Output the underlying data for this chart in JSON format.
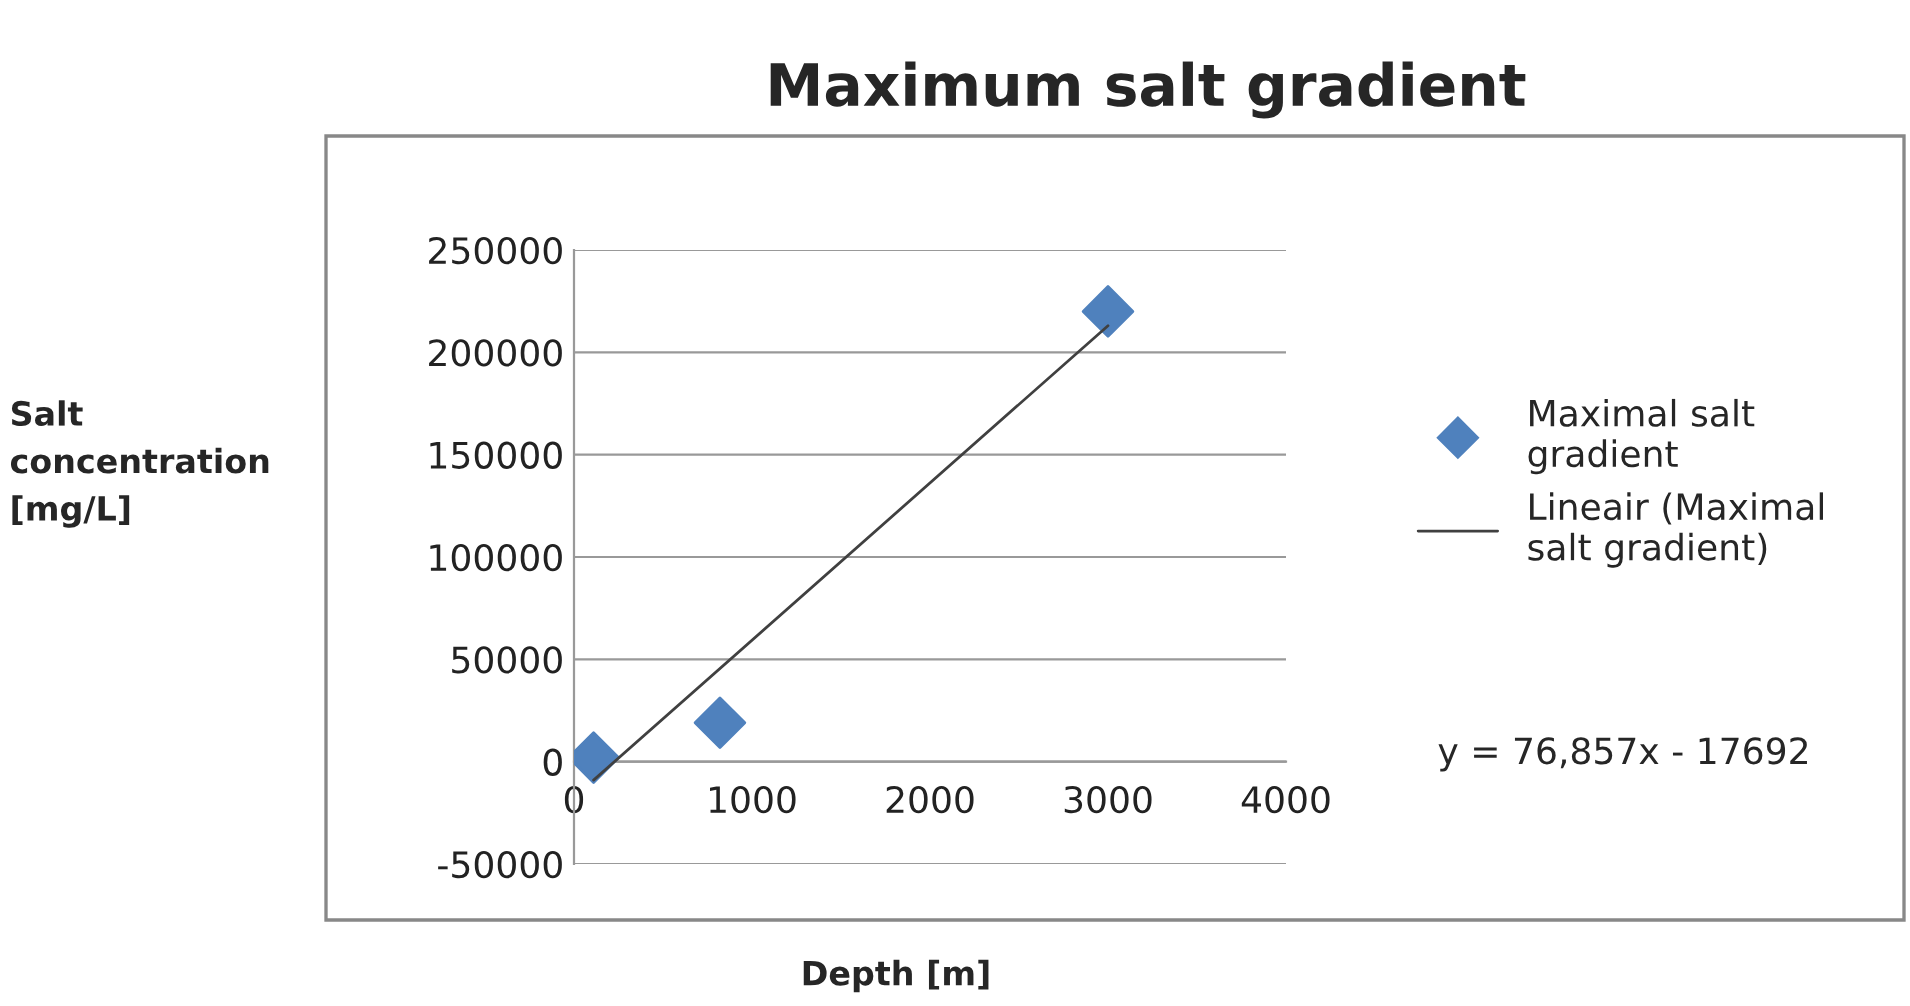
{
  "chart_data": {
    "type": "scatter",
    "title": "Maximum salt gradient",
    "xlabel": "Depth [m]",
    "ylabel": "Salt concentration [mg/L]",
    "series": [
      {
        "name": "Maximal salt gradient",
        "color": "#4f81bd",
        "x": [
          110,
          820,
          3000
        ],
        "values": [
          2000,
          19000,
          220000
        ],
        "marker": "diamond"
      },
      {
        "name": "Lineair (Maximal salt gradient)",
        "type": "line",
        "color": "#404040",
        "x": [
          110,
          3000
        ],
        "values": [
          -9000,
          213000
        ],
        "marker": "none",
        "line_style": "solid"
      }
    ],
    "annotations": [
      "y = 76,857x - 17692"
    ],
    "xlim": [
      0,
      4000
    ],
    "xticks": [
      0,
      1000,
      2000,
      3000,
      4000
    ],
    "ylim": [
      -50000,
      250000
    ],
    "yticks": [
      -50000,
      0,
      50000,
      100000,
      150000,
      200000,
      250000
    ],
    "grid": "y",
    "legend": "right"
  }
}
